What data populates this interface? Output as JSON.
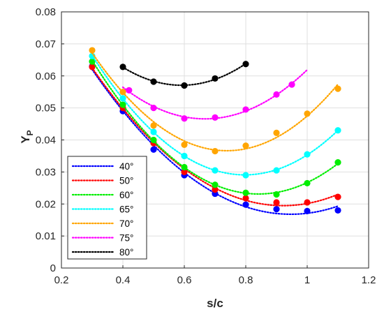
{
  "chart_data": {
    "type": "scatter",
    "title": "",
    "xlabel": "s/c",
    "ylabel_main": "Y",
    "ylabel_sub": "P",
    "xlim": [
      0.2,
      1.2
    ],
    "ylim": [
      0,
      0.08
    ],
    "xticks": [
      0.2,
      0.4,
      0.6,
      0.8,
      1,
      1.2
    ],
    "xtick_labels": [
      "0.2",
      "0.4",
      "0.6",
      "0.8",
      "1",
      "1.2"
    ],
    "yticks": [
      0,
      0.01,
      0.02,
      0.03,
      0.04,
      0.05,
      0.06,
      0.07,
      0.08
    ],
    "ytick_labels": [
      "0",
      "0.01",
      "0.02",
      "0.03",
      "0.04",
      "0.05",
      "0.06",
      "0.07",
      "0.08"
    ],
    "grid": true,
    "legend_position": "bottom-left",
    "series": [
      {
        "name": "40°",
        "color": "#0000ff",
        "points": [
          [
            0.3,
            0.063
          ],
          [
            0.4,
            0.049
          ],
          [
            0.5,
            0.037
          ],
          [
            0.6,
            0.029
          ],
          [
            0.7,
            0.0232
          ],
          [
            0.8,
            0.0198
          ],
          [
            0.9,
            0.0184
          ],
          [
            1.0,
            0.0178
          ],
          [
            1.1,
            0.018
          ]
        ],
        "fit_range": [
          0.3,
          1.1
        ]
      },
      {
        "name": "50°",
        "color": "#ff0000",
        "points": [
          [
            0.3,
            0.0628
          ],
          [
            0.4,
            0.05
          ],
          [
            0.5,
            0.039
          ],
          [
            0.6,
            0.03
          ],
          [
            0.7,
            0.0245
          ],
          [
            0.8,
            0.0218
          ],
          [
            0.9,
            0.0205
          ],
          [
            1.0,
            0.0205
          ],
          [
            1.1,
            0.0222
          ]
        ],
        "fit_range": [
          0.3,
          1.1
        ]
      },
      {
        "name": "60°",
        "color": "#00ee00",
        "points": [
          [
            0.3,
            0.0645
          ],
          [
            0.4,
            0.051
          ],
          [
            0.5,
            0.04
          ],
          [
            0.6,
            0.0315
          ],
          [
            0.7,
            0.026
          ],
          [
            0.8,
            0.0235
          ],
          [
            0.9,
            0.023
          ],
          [
            1.0,
            0.0265
          ],
          [
            1.1,
            0.033
          ]
        ],
        "fit_range": [
          0.3,
          1.1
        ]
      },
      {
        "name": "65°",
        "color": "#00ffff",
        "points": [
          [
            0.3,
            0.0662
          ],
          [
            0.4,
            0.053
          ],
          [
            0.5,
            0.0425
          ],
          [
            0.6,
            0.035
          ],
          [
            0.7,
            0.0305
          ],
          [
            0.8,
            0.029
          ],
          [
            0.9,
            0.0305
          ],
          [
            1.0,
            0.0355
          ],
          [
            1.1,
            0.043
          ]
        ],
        "fit_range": [
          0.3,
          1.1
        ]
      },
      {
        "name": "70°",
        "color": "#ffa500",
        "points": [
          [
            0.3,
            0.068
          ],
          [
            0.4,
            0.055
          ],
          [
            0.5,
            0.0445
          ],
          [
            0.6,
            0.0385
          ],
          [
            0.7,
            0.0365
          ],
          [
            0.8,
            0.0382
          ],
          [
            0.9,
            0.0422
          ],
          [
            1.0,
            0.0482
          ],
          [
            1.1,
            0.056
          ]
        ],
        "fit_range": [
          0.3,
          1.1
        ]
      },
      {
        "name": "75°",
        "color": "#ff00ff",
        "points": [
          [
            0.42,
            0.0555
          ],
          [
            0.5,
            0.05
          ],
          [
            0.6,
            0.0467
          ],
          [
            0.7,
            0.047
          ],
          [
            0.8,
            0.0495
          ],
          [
            0.9,
            0.0542
          ],
          [
            0.95,
            0.0573
          ]
        ],
        "fit_range": [
          0.4,
          1.0
        ]
      },
      {
        "name": "80°",
        "color": "#000000",
        "points": [
          [
            0.4,
            0.0628
          ],
          [
            0.5,
            0.0582
          ],
          [
            0.6,
            0.057
          ],
          [
            0.7,
            0.0592
          ],
          [
            0.8,
            0.0637
          ]
        ],
        "fit_range": [
          0.4,
          0.8
        ]
      }
    ]
  }
}
